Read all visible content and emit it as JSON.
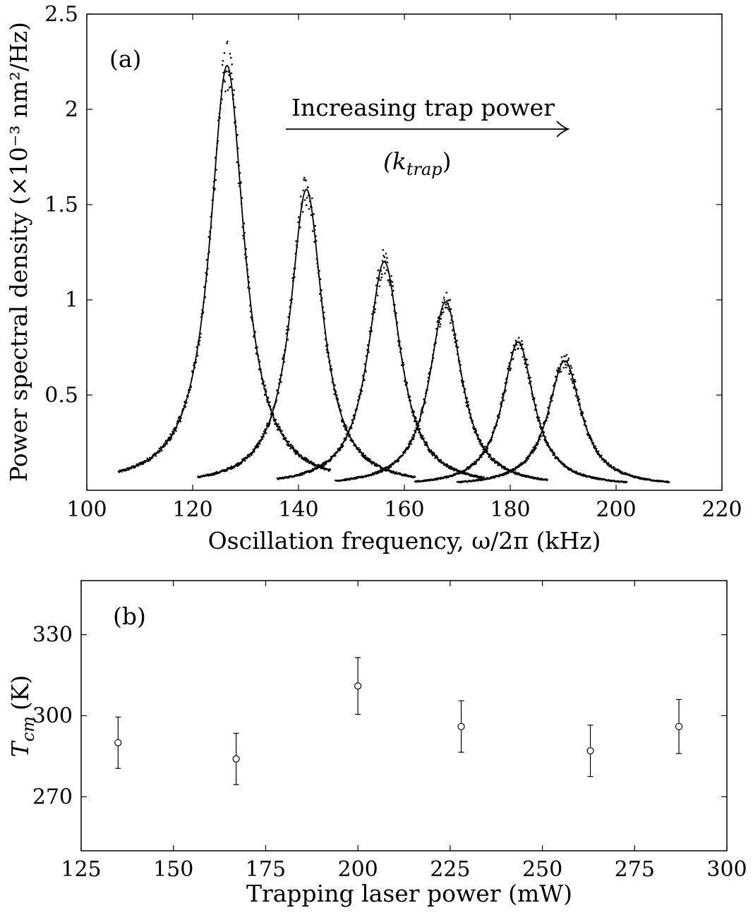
{
  "chart_data": [
    {
      "type": "line",
      "panel_label": "(a)",
      "xlabel": "Oscillation frequency, ω/2π (kHz)",
      "ylabel": "Power spectral density (×10⁻³ nm²/Hz)",
      "xlim": [
        100,
        220
      ],
      "ylim": [
        0,
        2.5
      ],
      "xticks": [
        100,
        120,
        140,
        160,
        180,
        200,
        220
      ],
      "yticks": [
        0.5,
        1,
        1.5,
        2,
        2.5
      ],
      "ytick_labels": [
        "0.5",
        "1",
        "1.5",
        "2",
        "2.5"
      ],
      "annotation": {
        "text": "Increasing trap power",
        "subtext": "(k",
        "subtext_sub": "trap",
        "subtext_end": ")"
      },
      "series": [
        {
          "peak_khz": 126.5,
          "peak_psd": 2.23,
          "hwhm_khz": 3.9,
          "range_khz": [
            106,
            146
          ],
          "offset": 0.02
        },
        {
          "peak_khz": 141.5,
          "peak_psd": 1.58,
          "hwhm_khz": 3.7,
          "range_khz": [
            121,
            162
          ],
          "offset": 0.02
        },
        {
          "peak_khz": 156.2,
          "peak_psd": 1.2,
          "hwhm_khz": 3.8,
          "range_khz": [
            136,
            175
          ],
          "offset": 0.02
        },
        {
          "peak_khz": 167.8,
          "peak_psd": 0.99,
          "hwhm_khz": 3.7,
          "range_khz": [
            147,
            187
          ],
          "offset": 0.02
        },
        {
          "peak_khz": 181.5,
          "peak_psd": 0.78,
          "hwhm_khz": 3.6,
          "range_khz": [
            162,
            202
          ],
          "offset": 0.02
        },
        {
          "peak_khz": 190.3,
          "peak_psd": 0.68,
          "hwhm_khz": 3.8,
          "range_khz": [
            170,
            210
          ],
          "offset": 0.02
        }
      ]
    },
    {
      "type": "scatter",
      "panel_label": "(b)",
      "xlabel": "Trapping laser power (mW)",
      "ylabel_main": "T",
      "ylabel_sub": "cm",
      "ylabel_unit": "(K)",
      "xlim": [
        125,
        300
      ],
      "ylim": [
        250,
        350
      ],
      "xticks": [
        125,
        150,
        175,
        200,
        225,
        250,
        275,
        300
      ],
      "yticks": [
        270,
        300,
        330
      ],
      "points": [
        {
          "x": 135,
          "y": 290,
          "err": 9.5
        },
        {
          "x": 167,
          "y": 284,
          "err": 9.5
        },
        {
          "x": 200,
          "y": 311,
          "err": 10.5
        },
        {
          "x": 228,
          "y": 296,
          "err": 9.5
        },
        {
          "x": 263,
          "y": 287,
          "err": 9.5
        },
        {
          "x": 287,
          "y": 296,
          "err": 10
        }
      ]
    }
  ]
}
